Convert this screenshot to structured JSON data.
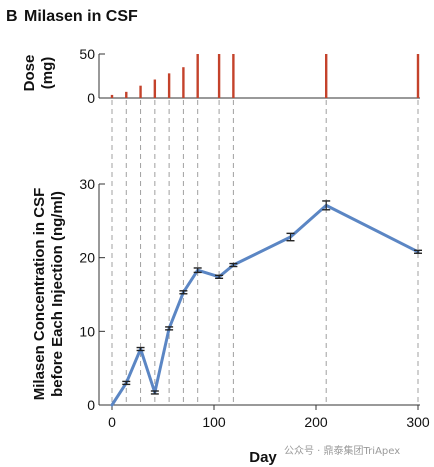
{
  "panel_letter": "B",
  "title": "Milasen in CSF",
  "watermark": "公众号 · 鼎泰集团TriApex",
  "colors": {
    "dose_bar": "#c4422b",
    "series_line": "#5b86c4",
    "error_bar": "#222222",
    "guide_line": "#a0a0a0",
    "axis": "#333333"
  },
  "chart_data": [
    {
      "type": "bar",
      "ylabel_lines": [
        "Dose",
        "(mg)"
      ],
      "ylim": [
        0,
        50
      ],
      "yticks": [
        0,
        50
      ],
      "x": [
        0,
        14,
        28,
        42,
        56,
        70,
        84,
        105,
        119,
        210,
        300
      ],
      "values": [
        3.5,
        7,
        14,
        21,
        28,
        35,
        50,
        50,
        50,
        50,
        50
      ]
    },
    {
      "type": "line",
      "xlabel": "Day",
      "ylabel_lines": [
        "Milasen Concentration in CSF",
        "before Each Injection (ng/ml)"
      ],
      "xlim": [
        0,
        300
      ],
      "ylim": [
        0,
        30
      ],
      "xticks": [
        0,
        100,
        200,
        300
      ],
      "yticks": [
        0,
        10,
        20,
        30
      ],
      "x": [
        0,
        14,
        28,
        42,
        56,
        70,
        84,
        105,
        119,
        175,
        210,
        300
      ],
      "y": [
        0,
        3.0,
        7.6,
        1.7,
        10.4,
        15.3,
        18.3,
        17.4,
        19.0,
        22.8,
        27.1,
        20.8
      ],
      "err": [
        0,
        0.2,
        0.2,
        0.2,
        0.2,
        0.2,
        0.3,
        0.2,
        0.2,
        0.5,
        0.6,
        0.2
      ]
    }
  ]
}
